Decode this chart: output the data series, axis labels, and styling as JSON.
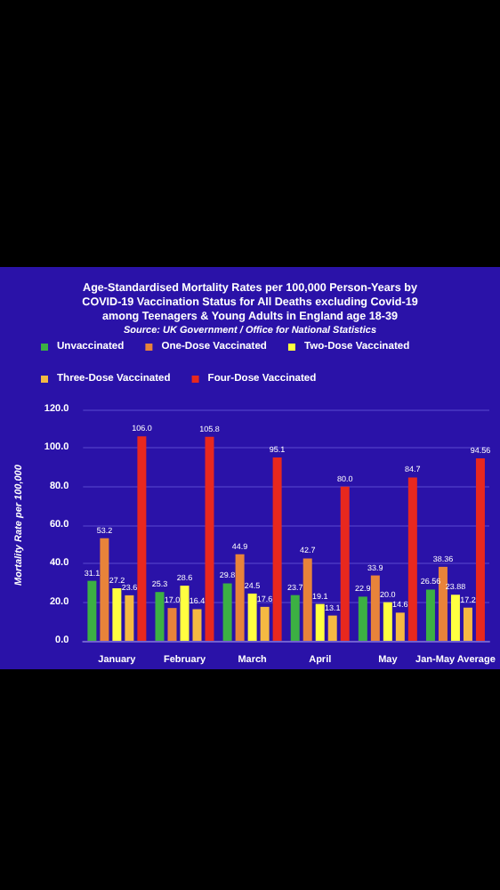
{
  "chart_data": {
    "type": "bar",
    "title": "Age-Standardised Mortality Rates per 100,000 Person-Years by\nCOVID-19 Vaccination Status for All Deaths excluding Covid-19\namong Teenagers & Young Adults in England age 18-39",
    "subtitle": "Source: UK Government / Office for National Statistics",
    "ylabel": "Mortality Rate per 100,000",
    "categories": [
      "January",
      "February",
      "March",
      "April",
      "May",
      "Jan-May Average"
    ],
    "series": [
      {
        "name": "Unvaccinated",
        "color": "#3cb043",
        "values": [
          31.1,
          25.3,
          29.8,
          23.7,
          22.9,
          26.56
        ],
        "value_labels": [
          "31.1",
          "25.3",
          "29.8",
          "23.7",
          "22.9",
          "26.56"
        ]
      },
      {
        "name": "One-Dose Vaccinated",
        "color": "#e8833a",
        "values": [
          53.2,
          17.0,
          44.9,
          42.7,
          33.9,
          38.36
        ],
        "value_labels": [
          "53.2",
          "17.0",
          "44.9",
          "42.7",
          "33.9",
          "38.36"
        ]
      },
      {
        "name": "Two-Dose Vaccinated",
        "color": "#ffff40",
        "values": [
          27.2,
          28.6,
          24.5,
          19.1,
          20.0,
          23.88
        ],
        "value_labels": [
          "27.2",
          "28.6",
          "24.5",
          "19.1",
          "20.0",
          "23.88"
        ]
      },
      {
        "name": "Three-Dose Vaccinated",
        "color": "#f5b942",
        "values": [
          23.6,
          16.4,
          17.6,
          13.1,
          14.6,
          17.2
        ],
        "value_labels": [
          "23.6",
          "16.4",
          "17.6",
          "13.1",
          "14.6",
          "17.2"
        ]
      },
      {
        "name": "Four-Dose Vaccinated",
        "color": "#e8281e",
        "values": [
          106.0,
          105.8,
          95.1,
          80.0,
          84.7,
          94.56
        ],
        "value_labels": [
          "106.0",
          "105.8",
          "95.1",
          "80.0",
          "84.7",
          "94.56"
        ]
      }
    ],
    "ylim": [
      0,
      120
    ],
    "yticks": [
      {
        "value": 0,
        "label": "0.0"
      },
      {
        "value": 20,
        "label": "20.0"
      },
      {
        "value": 40,
        "label": "40.0"
      },
      {
        "value": 60,
        "label": "60.0"
      },
      {
        "value": 80,
        "label": "80.0"
      },
      {
        "value": 100,
        "label": "100.0"
      },
      {
        "value": 120,
        "label": "120.0"
      }
    ],
    "grid": "y",
    "legend": "top"
  }
}
